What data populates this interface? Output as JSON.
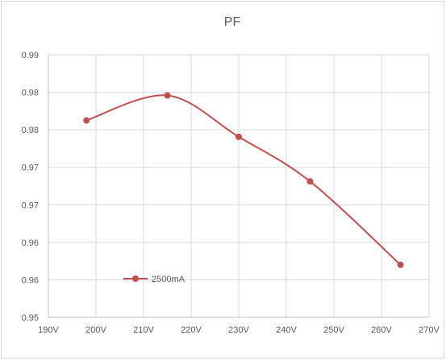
{
  "chart_data": {
    "type": "line",
    "title": "PF",
    "xlabel": "",
    "ylabel": "",
    "x_tick_labels": [
      "190V",
      "200V",
      "210V",
      "220V",
      "230V",
      "240V",
      "250V",
      "260V",
      "270V"
    ],
    "y_tick_labels": [
      "0.95",
      "0.96",
      "0.96",
      "0.97",
      "0.97",
      "0.98",
      "0.98",
      "0.99"
    ],
    "xlim": [
      190,
      270
    ],
    "ylim": [
      0.95,
      0.99
    ],
    "grid": true,
    "smooth": true,
    "legend_position": "bottom-left",
    "series": [
      {
        "name": "2500mA",
        "color": "#c0504d",
        "points": [
          {
            "x": 198,
            "y": 0.98
          },
          {
            "x": 215,
            "y": 0.9838
          },
          {
            "x": 230,
            "y": 0.9775
          },
          {
            "x": 245,
            "y": 0.9707
          },
          {
            "x": 264,
            "y": 0.958
          }
        ]
      }
    ]
  }
}
